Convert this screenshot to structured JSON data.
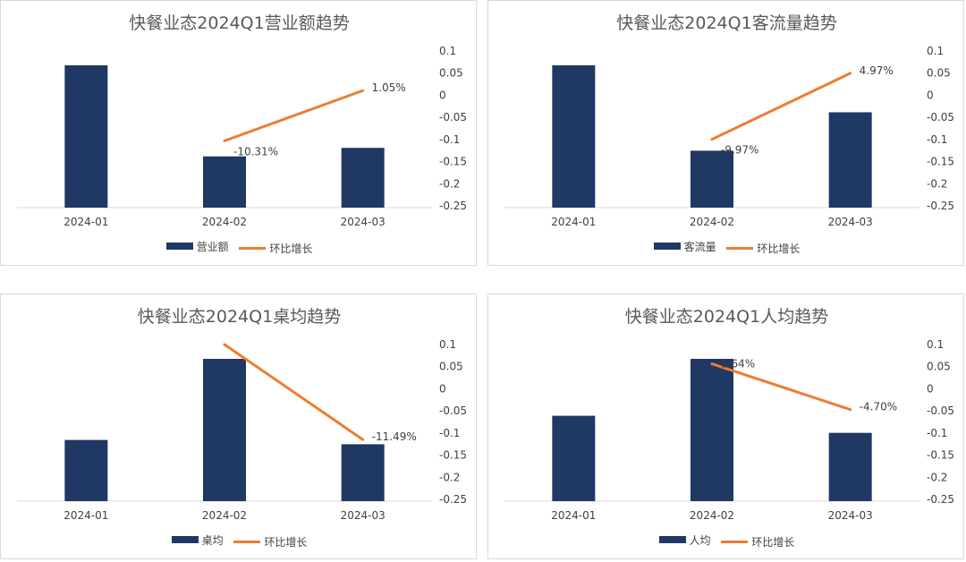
{
  "colors": {
    "bar": "#203864",
    "line": "#ed7d31",
    "axis": "#d9d9d9",
    "text": "#404040"
  },
  "chart_data": [
    {
      "type": "bar+line",
      "title": "快餐业态2024Q1营业额趋势",
      "categories": [
        "2024-01",
        "2024-02",
        "2024-03"
      ],
      "bar_series": {
        "name": "营业额",
        "values": [
          1.0,
          0.36,
          0.42
        ]
      },
      "line_series": {
        "name": "环比增长",
        "values": [
          null,
          -0.1031,
          0.0105
        ],
        "labels": [
          "",
          "-10.31%",
          "1.05%"
        ]
      },
      "y2_ticks": [
        "0.1",
        "0.05",
        "0",
        "-0.05",
        "-0.1",
        "-0.15",
        "-0.2",
        "-0.25"
      ],
      "y2lim": [
        -0.25,
        0.1
      ]
    },
    {
      "type": "bar+line",
      "title": "快餐业态2024Q1客流量趋势",
      "categories": [
        "2024-01",
        "2024-02",
        "2024-03"
      ],
      "bar_series": {
        "name": "客流量",
        "values": [
          1.0,
          0.4,
          0.67
        ]
      },
      "line_series": {
        "name": "环比增长",
        "values": [
          null,
          -0.0997,
          0.0497
        ],
        "labels": [
          "",
          "-9.97%",
          "4.97%"
        ]
      },
      "y2_ticks": [
        "0.1",
        "0.05",
        "0",
        "-0.05",
        "-0.1",
        "-0.15",
        "-0.2",
        "-0.25"
      ],
      "y2lim": [
        -0.25,
        0.1
      ]
    },
    {
      "type": "bar+line",
      "title": "快餐业态2024Q1桌均趋势",
      "categories": [
        "2024-01",
        "2024-02",
        "2024-03"
      ],
      "bar_series": {
        "name": "桌均",
        "values": [
          0.43,
          1.0,
          0.4
        ]
      },
      "line_series": {
        "name": "环比增长",
        "values": [
          null,
          0.1,
          -0.1149
        ],
        "labels": [
          "",
          "",
          "-11.49%"
        ]
      },
      "y2_ticks": [
        "0.1",
        "0.05",
        "0",
        "-0.05",
        "-0.1",
        "-0.15",
        "-0.2",
        "-0.25"
      ],
      "y2lim": [
        -0.25,
        0.1
      ]
    },
    {
      "type": "bar+line",
      "title": "快餐业态2024Q1人均趋势",
      "categories": [
        "2024-01",
        "2024-02",
        "2024-03"
      ],
      "bar_series": {
        "name": "人均",
        "values": [
          0.6,
          1.0,
          0.48
        ]
      },
      "line_series": {
        "name": "环比增长",
        "values": [
          null,
          0.0564,
          -0.047
        ],
        "labels": [
          "",
          "5.64%",
          "-4.70%"
        ]
      },
      "y2_ticks": [
        "0.1",
        "0.05",
        "0",
        "-0.05",
        "-0.1",
        "-0.15",
        "-0.2",
        "-0.25"
      ],
      "y2lim": [
        -0.25,
        0.1
      ]
    }
  ]
}
